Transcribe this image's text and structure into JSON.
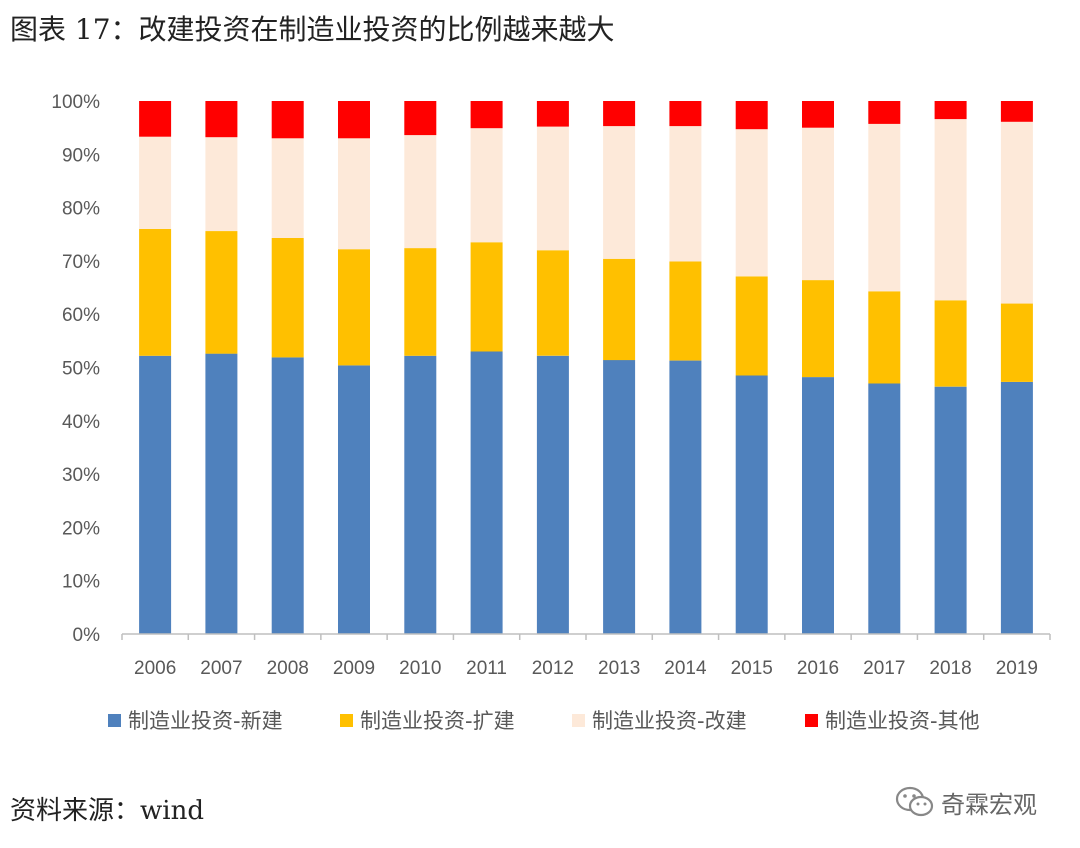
{
  "title": "图表 17：改建投资在制造业投资的比例越来越大",
  "source": "资料来源：wind",
  "watermark": "奇霖宏观",
  "chart_data": {
    "type": "bar",
    "stacked": true,
    "percent_stacked": true,
    "categories": [
      "2006",
      "2007",
      "2008",
      "2009",
      "2010",
      "2011",
      "2012",
      "2013",
      "2014",
      "2015",
      "2016",
      "2017",
      "2018",
      "2019"
    ],
    "series": [
      {
        "name": "制造业投资-新建",
        "color": "#4F81BD",
        "values": [
          52.2,
          52.6,
          51.9,
          50.4,
          52.2,
          53.0,
          52.2,
          51.4,
          51.3,
          48.5,
          48.2,
          47.0,
          46.4,
          47.3
        ]
      },
      {
        "name": "制造业投资-扩建",
        "color": "#FFC000",
        "values": [
          23.8,
          23.0,
          22.4,
          21.8,
          20.2,
          20.5,
          19.8,
          19.0,
          18.6,
          18.6,
          18.2,
          17.3,
          16.2,
          14.7
        ]
      },
      {
        "name": "制造业投资-改建",
        "color": "#FDE9D9",
        "values": [
          17.3,
          17.6,
          18.7,
          20.8,
          21.2,
          21.4,
          23.2,
          24.9,
          25.4,
          27.6,
          28.6,
          31.4,
          34.0,
          34.1
        ]
      },
      {
        "name": "制造业投资-其他",
        "color": "#FF0000",
        "values": [
          6.7,
          6.8,
          7.0,
          7.0,
          6.4,
          5.1,
          4.8,
          4.7,
          4.7,
          5.3,
          5.0,
          4.3,
          3.4,
          3.9
        ]
      }
    ],
    "y_ticks": [
      "0%",
      "10%",
      "20%",
      "30%",
      "40%",
      "50%",
      "60%",
      "70%",
      "80%",
      "90%",
      "100%"
    ],
    "ylim": [
      0,
      100
    ],
    "grid": false,
    "legend_position": "bottom"
  }
}
